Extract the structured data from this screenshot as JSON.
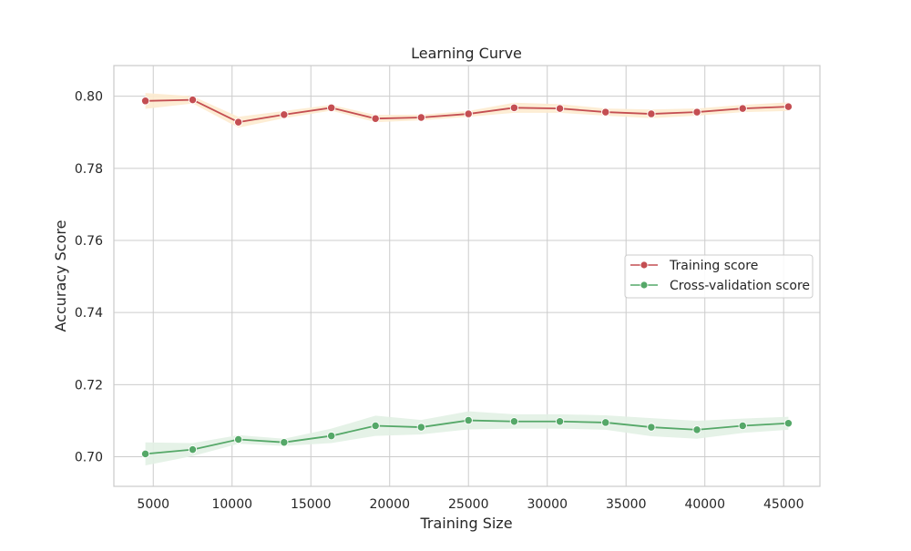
{
  "chart_data": {
    "type": "line",
    "title": "Learning Curve",
    "xlabel": "Training Size",
    "ylabel": "Accuracy Score",
    "xlim": [
      2500,
      47300
    ],
    "ylim": [
      0.6918,
      0.8085
    ],
    "xticks": [
      5000,
      10000,
      15000,
      20000,
      25000,
      30000,
      35000,
      40000,
      45000
    ],
    "yticks": [
      0.7,
      0.72,
      0.74,
      0.76,
      0.78,
      0.8
    ],
    "ytick_labels": [
      "0.70",
      "0.72",
      "0.74",
      "0.76",
      "0.78",
      "0.80"
    ],
    "grid": true,
    "legend_position": "center-right",
    "x": [
      4500,
      7500,
      10400,
      13300,
      16300,
      19100,
      22000,
      25000,
      27900,
      30800,
      33700,
      36600,
      39500,
      42400,
      45300
    ],
    "series": [
      {
        "name": "Training score",
        "color": "#c44e52",
        "band_color": "#fdebcf",
        "values": [
          0.7987,
          0.799,
          0.7928,
          0.7949,
          0.7968,
          0.7938,
          0.7941,
          0.7951,
          0.7968,
          0.7966,
          0.7956,
          0.7951,
          0.7956,
          0.7966,
          0.7971
        ],
        "band": [
          0.0022,
          0.001,
          0.0015,
          0.001,
          0.0008,
          0.001,
          0.0008,
          0.0008,
          0.0014,
          0.0012,
          0.001,
          0.0012,
          0.001,
          0.001,
          0.0012
        ]
      },
      {
        "name": "Cross-validation score",
        "color": "#55a868",
        "band_color": "#e2f1e4",
        "values": [
          0.7008,
          0.702,
          0.7048,
          0.704,
          0.7058,
          0.7086,
          0.7082,
          0.7101,
          0.7098,
          0.7098,
          0.7095,
          0.7082,
          0.7075,
          0.7086,
          0.7093
        ],
        "band": [
          0.0032,
          0.0018,
          0.0012,
          0.001,
          0.002,
          0.0028,
          0.002,
          0.0025,
          0.002,
          0.002,
          0.002,
          0.0025,
          0.0025,
          0.002,
          0.0018
        ]
      }
    ]
  }
}
